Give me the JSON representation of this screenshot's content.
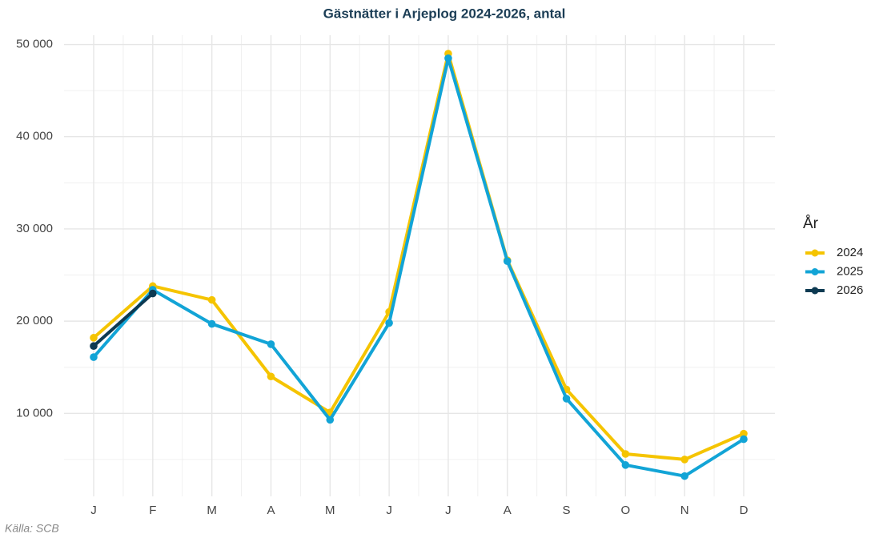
{
  "chart_data": {
    "type": "line",
    "title": "Gästnätter i Arjeplog 2024-2026, antal",
    "caption": "Källa: SCB",
    "categories": [
      "J",
      "F",
      "M",
      "A",
      "M",
      "J",
      "J",
      "A",
      "S",
      "O",
      "N",
      "D"
    ],
    "legend_title": "År",
    "legend_position": "right",
    "grid": true,
    "series": [
      {
        "name": "2024",
        "color": "#f5c400",
        "values": [
          18200,
          23800,
          22300,
          14000,
          10100,
          21000,
          49000,
          26600,
          12600,
          5600,
          5000,
          7800
        ]
      },
      {
        "name": "2025",
        "color": "#12a4d6",
        "values": [
          16100,
          23400,
          19700,
          17500,
          9300,
          19800,
          48500,
          26500,
          11600,
          4400,
          3200,
          7200
        ]
      },
      {
        "name": "2026",
        "color": "#0d3a52",
        "values": [
          17300,
          23000,
          null,
          null,
          null,
          null,
          null,
          null,
          null,
          null,
          null,
          null
        ]
      }
    ],
    "ylim": [
      1000,
      51000
    ],
    "yticks": [
      {
        "value": 10000,
        "label": "10 000"
      },
      {
        "value": 20000,
        "label": "20 000"
      },
      {
        "value": 30000,
        "label": "30 000"
      },
      {
        "value": 40000,
        "label": "40 000"
      },
      {
        "value": 50000,
        "label": "50 000"
      }
    ]
  }
}
